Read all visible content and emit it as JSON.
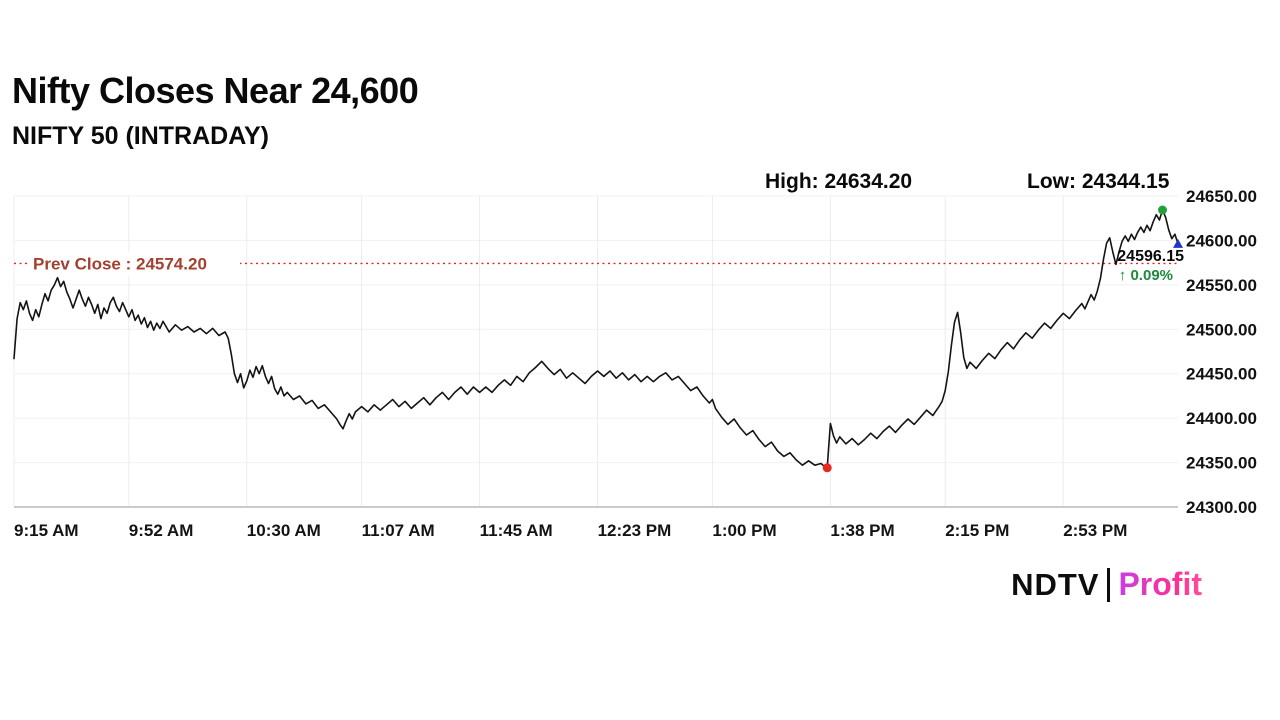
{
  "header": {
    "title": "Nifty Closes Near 24,600",
    "subtitle": "NIFTY 50 (INTRADAY)"
  },
  "stats": {
    "high_label": "High: 24634.20",
    "low_label": "Low: 24344.15"
  },
  "footer": {
    "brand_ndtv": "NDTV",
    "brand_profit": "Profit"
  },
  "chart_data": {
    "type": "line",
    "title": "NIFTY 50 (INTRADAY)",
    "series_name": "NIFTY 50",
    "ylim": [
      24300,
      24650
    ],
    "x_range_minutes": [
      0,
      375
    ],
    "x_ticks": {
      "minutes": [
        0,
        37,
        75,
        112,
        150,
        188,
        225,
        263,
        300,
        338
      ],
      "labels": [
        "9:15 AM",
        "9:52 AM",
        "10:30 AM",
        "11:07 AM",
        "11:45 AM",
        "12:23 PM",
        "1:00 PM",
        "1:38 PM",
        "2:15 PM",
        "2:53 PM"
      ]
    },
    "y_ticks": {
      "values": [
        24650,
        24600,
        24550,
        24500,
        24450,
        24400,
        24350,
        24300
      ],
      "labels": [
        "24650.00",
        "24600.00",
        "24550.00",
        "24500.00",
        "24450.00",
        "24400.00",
        "24350.00",
        "24300.00"
      ]
    },
    "line_color": "#141414",
    "grid_color": "#ececec",
    "axis_color": "#aaaaaa",
    "prev_close": {
      "value": 24574.2,
      "label": "Prev Close : 24574.20",
      "line_color": "#f01f1f",
      "label_color": "#a3402f"
    },
    "high": {
      "minute": 370,
      "value": 24634.2,
      "marker_color": "#1fa23d"
    },
    "low": {
      "minute": 262,
      "value": 24344.15,
      "marker_color": "#e8291f"
    },
    "last": {
      "minute": 375,
      "value": 24596.15,
      "label": "24596.15",
      "label_color": "#0a0a0a",
      "change_label": "↑ 0.09%",
      "change_color": "#1d8a3a",
      "marker_color": "#2236c8"
    },
    "points": [
      [
        0,
        24467
      ],
      [
        1,
        24512
      ],
      [
        2,
        24530
      ],
      [
        3,
        24522
      ],
      [
        4,
        24532
      ],
      [
        5,
        24518
      ],
      [
        6,
        24510
      ],
      [
        7,
        24522
      ],
      [
        8,
        24514
      ],
      [
        9,
        24528
      ],
      [
        10,
        24540
      ],
      [
        11,
        24532
      ],
      [
        12,
        24544
      ],
      [
        13,
        24550
      ],
      [
        14,
        24558
      ],
      [
        15,
        24548
      ],
      [
        16,
        24554
      ],
      [
        17,
        24542
      ],
      [
        18,
        24534
      ],
      [
        19,
        24524
      ],
      [
        20,
        24534
      ],
      [
        21,
        24544
      ],
      [
        22,
        24534
      ],
      [
        23,
        24526
      ],
      [
        24,
        24536
      ],
      [
        25,
        24528
      ],
      [
        26,
        24518
      ],
      [
        27,
        24528
      ],
      [
        28,
        24512
      ],
      [
        29,
        24524
      ],
      [
        30,
        24518
      ],
      [
        31,
        24530
      ],
      [
        32,
        24536
      ],
      [
        33,
        24526
      ],
      [
        34,
        24520
      ],
      [
        35,
        24530
      ],
      [
        36,
        24522
      ],
      [
        37,
        24514
      ],
      [
        38,
        24522
      ],
      [
        39,
        24510
      ],
      [
        40,
        24516
      ],
      [
        41,
        24506
      ],
      [
        42,
        24513
      ],
      [
        43,
        24502
      ],
      [
        44,
        24509
      ],
      [
        45,
        24499
      ],
      [
        46,
        24507
      ],
      [
        47,
        24501
      ],
      [
        48,
        24509
      ],
      [
        49,
        24503
      ],
      [
        50,
        24497
      ],
      [
        52,
        24505
      ],
      [
        54,
        24499
      ],
      [
        56,
        24503
      ],
      [
        58,
        24497
      ],
      [
        60,
        24501
      ],
      [
        62,
        24495
      ],
      [
        64,
        24501
      ],
      [
        66,
        24493
      ],
      [
        68,
        24497
      ],
      [
        69,
        24490
      ],
      [
        70,
        24472
      ],
      [
        71,
        24450
      ],
      [
        72,
        24440
      ],
      [
        73,
        24450
      ],
      [
        74,
        24434
      ],
      [
        75,
        24442
      ],
      [
        76,
        24454
      ],
      [
        77,
        24446
      ],
      [
        78,
        24458
      ],
      [
        79,
        24450
      ],
      [
        80,
        24459
      ],
      [
        81,
        24447
      ],
      [
        82,
        24439
      ],
      [
        83,
        24447
      ],
      [
        84,
        24433
      ],
      [
        85,
        24427
      ],
      [
        86,
        24435
      ],
      [
        87,
        24425
      ],
      [
        88,
        24429
      ],
      [
        90,
        24421
      ],
      [
        92,
        24425
      ],
      [
        94,
        24416
      ],
      [
        96,
        24420
      ],
      [
        98,
        24411
      ],
      [
        100,
        24415
      ],
      [
        102,
        24407
      ],
      [
        104,
        24399
      ],
      [
        105,
        24393
      ],
      [
        106,
        24388
      ],
      [
        107,
        24397
      ],
      [
        108,
        24405
      ],
      [
        109,
        24399
      ],
      [
        110,
        24407
      ],
      [
        112,
        24413
      ],
      [
        114,
        24407
      ],
      [
        116,
        24415
      ],
      [
        118,
        24409
      ],
      [
        120,
        24415
      ],
      [
        122,
        24421
      ],
      [
        124,
        24413
      ],
      [
        126,
        24419
      ],
      [
        128,
        24411
      ],
      [
        130,
        24417
      ],
      [
        132,
        24423
      ],
      [
        134,
        24415
      ],
      [
        136,
        24423
      ],
      [
        138,
        24429
      ],
      [
        140,
        24421
      ],
      [
        142,
        24429
      ],
      [
        144,
        24435
      ],
      [
        146,
        24427
      ],
      [
        148,
        24435
      ],
      [
        150,
        24429
      ],
      [
        152,
        24435
      ],
      [
        154,
        24429
      ],
      [
        156,
        24437
      ],
      [
        158,
        24443
      ],
      [
        160,
        24437
      ],
      [
        162,
        24447
      ],
      [
        164,
        24441
      ],
      [
        166,
        24451
      ],
      [
        168,
        24457
      ],
      [
        170,
        24464
      ],
      [
        172,
        24456
      ],
      [
        174,
        24449
      ],
      [
        176,
        24455
      ],
      [
        178,
        24445
      ],
      [
        180,
        24451
      ],
      [
        182,
        24445
      ],
      [
        184,
        24439
      ],
      [
        186,
        24447
      ],
      [
        188,
        24453
      ],
      [
        190,
        24447
      ],
      [
        192,
        24453
      ],
      [
        194,
        24445
      ],
      [
        196,
        24451
      ],
      [
        198,
        24443
      ],
      [
        200,
        24449
      ],
      [
        202,
        24441
      ],
      [
        204,
        24447
      ],
      [
        206,
        24441
      ],
      [
        208,
        24447
      ],
      [
        210,
        24451
      ],
      [
        212,
        24443
      ],
      [
        214,
        24447
      ],
      [
        216,
        24439
      ],
      [
        218,
        24431
      ],
      [
        220,
        24435
      ],
      [
        222,
        24425
      ],
      [
        224,
        24417
      ],
      [
        225,
        24421
      ],
      [
        226,
        24411
      ],
      [
        228,
        24401
      ],
      [
        230,
        24393
      ],
      [
        232,
        24399
      ],
      [
        234,
        24389
      ],
      [
        236,
        24381
      ],
      [
        238,
        24386
      ],
      [
        240,
        24376
      ],
      [
        242,
        24368
      ],
      [
        244,
        24373
      ],
      [
        246,
        24363
      ],
      [
        248,
        24357
      ],
      [
        250,
        24361
      ],
      [
        252,
        24353
      ],
      [
        254,
        24347
      ],
      [
        256,
        24352
      ],
      [
        258,
        24347
      ],
      [
        260,
        24349
      ],
      [
        261,
        24346
      ],
      [
        262,
        24344.15
      ],
      [
        263,
        24394
      ],
      [
        264,
        24380
      ],
      [
        265,
        24372
      ],
      [
        266,
        24379
      ],
      [
        268,
        24371
      ],
      [
        270,
        24377
      ],
      [
        272,
        24370
      ],
      [
        274,
        24376
      ],
      [
        276,
        24383
      ],
      [
        278,
        24377
      ],
      [
        280,
        24385
      ],
      [
        282,
        24391
      ],
      [
        284,
        24384
      ],
      [
        286,
        24392
      ],
      [
        288,
        24399
      ],
      [
        290,
        24393
      ],
      [
        292,
        24401
      ],
      [
        294,
        24409
      ],
      [
        296,
        24403
      ],
      [
        298,
        24413
      ],
      [
        299,
        24419
      ],
      [
        300,
        24431
      ],
      [
        301,
        24452
      ],
      [
        302,
        24482
      ],
      [
        303,
        24508
      ],
      [
        304,
        24519
      ],
      [
        305,
        24496
      ],
      [
        306,
        24468
      ],
      [
        307,
        24456
      ],
      [
        308,
        24463
      ],
      [
        310,
        24456
      ],
      [
        312,
        24465
      ],
      [
        314,
        24473
      ],
      [
        316,
        24467
      ],
      [
        318,
        24477
      ],
      [
        320,
        24485
      ],
      [
        322,
        24478
      ],
      [
        324,
        24488
      ],
      [
        326,
        24496
      ],
      [
        328,
        24490
      ],
      [
        330,
        24499
      ],
      [
        332,
        24507
      ],
      [
        334,
        24501
      ],
      [
        336,
        24510
      ],
      [
        338,
        24518
      ],
      [
        340,
        24512
      ],
      [
        342,
        24521
      ],
      [
        344,
        24529
      ],
      [
        345,
        24523
      ],
      [
        346,
        24531
      ],
      [
        347,
        24539
      ],
      [
        348,
        24533
      ],
      [
        349,
        24543
      ],
      [
        350,
        24557
      ],
      [
        351,
        24579
      ],
      [
        352,
        24597
      ],
      [
        353,
        24603
      ],
      [
        354,
        24587
      ],
      [
        355,
        24573
      ],
      [
        356,
        24587
      ],
      [
        357,
        24599
      ],
      [
        358,
        24605
      ],
      [
        359,
        24599
      ],
      [
        360,
        24607
      ],
      [
        361,
        24601
      ],
      [
        362,
        24609
      ],
      [
        363,
        24615
      ],
      [
        364,
        24609
      ],
      [
        365,
        24617
      ],
      [
        366,
        24611
      ],
      [
        367,
        24621
      ],
      [
        368,
        24629
      ],
      [
        369,
        24623
      ],
      [
        370,
        24634.2
      ],
      [
        371,
        24626
      ],
      [
        372,
        24612
      ],
      [
        373,
        24602
      ],
      [
        374,
        24607
      ],
      [
        375,
        24596.15
      ]
    ]
  }
}
